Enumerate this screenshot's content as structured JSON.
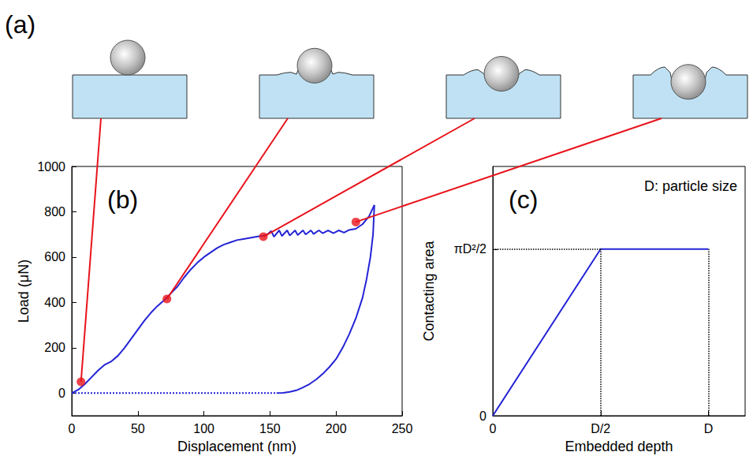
{
  "diagram": {
    "label": "(a)"
  },
  "chart_data": [
    {
      "type": "line",
      "label": "(b)",
      "xlabel": "Displacement (nm)",
      "ylabel": "Load (μN)",
      "xlim": [
        0,
        250
      ],
      "xticks": [
        0,
        50,
        100,
        150,
        200,
        250
      ],
      "ylim": [
        -100,
        1000
      ],
      "yticks": [
        0,
        200,
        400,
        600,
        800,
        1000
      ],
      "grid": false,
      "series": [
        {
          "color": "#2323d6",
          "line_style": "solid",
          "x": [
            0,
            5,
            10,
            15,
            20,
            25,
            30,
            35,
            40,
            45,
            50,
            55,
            60,
            65,
            70,
            75,
            80,
            85,
            90,
            95,
            100,
            105,
            110,
            115,
            120,
            125,
            130,
            135,
            140,
            145,
            148,
            151,
            153,
            157,
            159,
            163,
            165,
            169,
            171,
            175,
            177,
            181,
            183,
            187,
            190,
            194,
            198,
            202,
            206,
            210,
            215,
            220,
            225,
            229
          ],
          "values": [
            0,
            15,
            40,
            70,
            100,
            125,
            140,
            165,
            200,
            240,
            280,
            320,
            355,
            385,
            410,
            440,
            470,
            510,
            545,
            575,
            600,
            620,
            640,
            655,
            665,
            675,
            680,
            685,
            690,
            695,
            700,
            715,
            690,
            718,
            693,
            718,
            695,
            718,
            697,
            718,
            700,
            718,
            702,
            718,
            705,
            718,
            705,
            718,
            708,
            720,
            725,
            745,
            780,
            830
          ]
        },
        {
          "color": "#2323d6",
          "line_style": "solid",
          "x": [
            229,
            228,
            226,
            223,
            220,
            215,
            210,
            205,
            200,
            195,
            190,
            185,
            180,
            175,
            170,
            165,
            160,
            155
          ],
          "values": [
            830,
            700,
            600,
            500,
            420,
            330,
            260,
            200,
            150,
            115,
            85,
            60,
            40,
            25,
            12,
            5,
            1,
            0
          ]
        },
        {
          "color": "#2323d6",
          "line_style": "dotted",
          "x": [
            0,
            155
          ],
          "values": [
            0,
            0
          ]
        },
        {
          "type": "scatter",
          "color": "#e8141c",
          "marker": "circle",
          "x": [
            7,
            72,
            145,
            215
          ],
          "values": [
            50,
            415,
            690,
            755
          ]
        }
      ]
    },
    {
      "type": "line",
      "label": "(c)",
      "annotation": "D: particle size",
      "xlabel": "Embedded depth",
      "ylabel": "Contacting area",
      "xlim": [
        0,
        1.17
      ],
      "xticks": [
        0,
        {
          "value": 0.5,
          "label": "D/2"
        },
        {
          "value": 1,
          "label": "D"
        }
      ],
      "ylim": [
        0,
        2.35
      ],
      "yticks": [
        0,
        {
          "value": 1.5708,
          "label": "πD²/2"
        }
      ],
      "grid": false,
      "series": [
        {
          "color": "#2323d6",
          "line_style": "solid",
          "x": [
            0,
            0.5,
            1
          ],
          "values": [
            0,
            1.5708,
            1.5708
          ]
        }
      ]
    }
  ]
}
